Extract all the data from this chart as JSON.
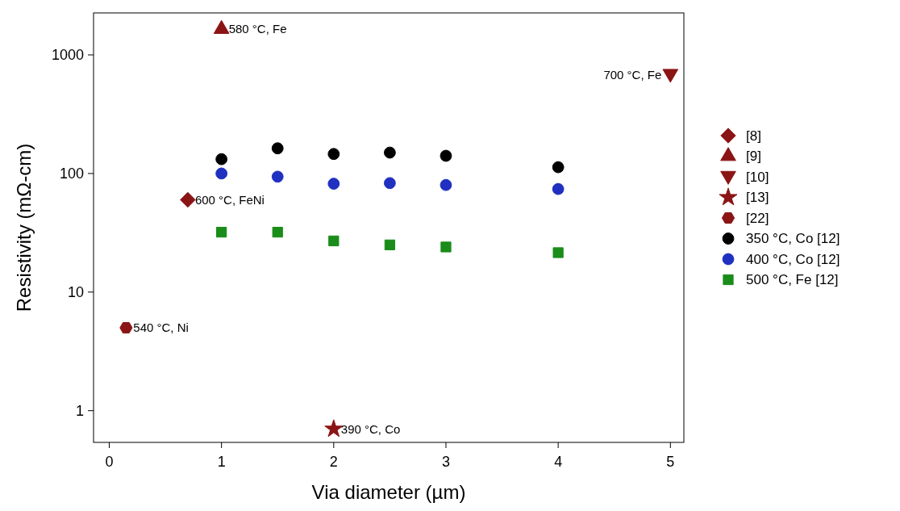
{
  "chart_data": {
    "type": "scatter",
    "xlabel": "Via diameter (µm)",
    "ylabel": "Resistivity (mΩ-cm)",
    "log": "y",
    "xlim": [
      -0.14,
      5.12
    ],
    "ylim": [
      0.54,
      2260
    ],
    "xticks": [
      0,
      1,
      2,
      3,
      4,
      5
    ],
    "yticks": [
      1,
      10,
      100,
      1000
    ],
    "grid": false,
    "legend": "right",
    "series": [
      {
        "name": "[8]",
        "color": "#8b1414",
        "marker": "diamond",
        "x": [
          0.7
        ],
        "values": [
          60
        ]
      },
      {
        "name": "[9]",
        "color": "#8b1414",
        "marker": "triangle",
        "x": [
          1
        ],
        "values": [
          1650
        ]
      },
      {
        "name": "[10]",
        "color": "#8b1414",
        "marker": "triangle-down",
        "x": [
          5
        ],
        "values": [
          680
        ]
      },
      {
        "name": "[13]",
        "color": "#8b1414",
        "marker": "star",
        "x": [
          2
        ],
        "values": [
          0.7
        ]
      },
      {
        "name": "[22]",
        "color": "#8b1414",
        "x": [
          0.15
        ],
        "values": [
          5
        ]
      },
      {
        "name": "350 °C, Co [12]",
        "color": "#000000",
        "marker": "circle",
        "x": [
          1,
          1.5,
          2,
          2.5,
          3,
          4
        ],
        "values": [
          132,
          163,
          146,
          150,
          141,
          113
        ]
      },
      {
        "name": "400 °C, Co [12]",
        "color": "#2030c0",
        "marker": "circle",
        "x": [
          1,
          1.5,
          2,
          2.5,
          3,
          4
        ],
        "values": [
          100,
          94,
          82,
          83,
          80,
          74
        ]
      },
      {
        "name": "500 °C, Fe [12]",
        "color": "#1a8c1a",
        "marker": "square",
        "x": [
          1,
          1.5,
          2,
          2.5,
          3,
          4
        ],
        "values": [
          32,
          32,
          27,
          25,
          24,
          21.5
        ]
      }
    ],
    "annotations": [
      {
        "text": "580 °C, Fe",
        "x": 1,
        "y": 1650
      },
      {
        "text": "700 °C, Fe",
        "x": 5,
        "y": 680
      },
      {
        "text": "600 °C, FeNi",
        "x": 0.7,
        "y": 60
      },
      {
        "text": "540 °C, Ni",
        "x": 0.15,
        "y": 5
      },
      {
        "text": "390 °C, Co",
        "x": 2,
        "y": 0.7
      }
    ]
  }
}
